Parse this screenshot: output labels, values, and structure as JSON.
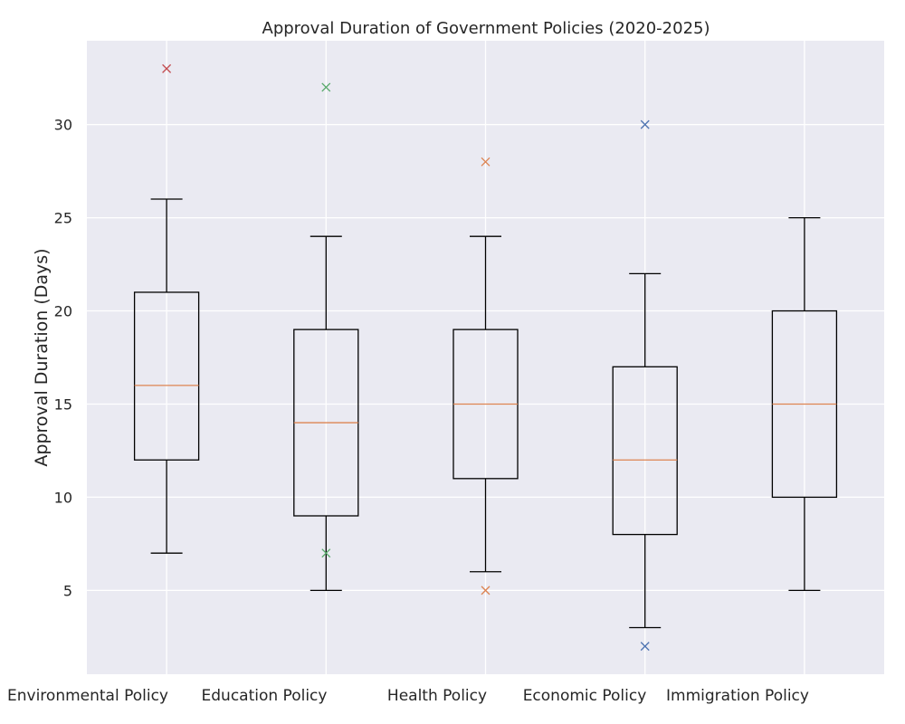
{
  "chart_data": {
    "type": "box",
    "title": "Approval Duration of Government Policies (2020-2025)",
    "xlabel": "",
    "ylabel": "Approval Duration (Days)",
    "ylim": [
      0.5,
      34.5
    ],
    "yticks": [
      5,
      10,
      15,
      20,
      25,
      30
    ],
    "grid": true,
    "categories": [
      "Environmental Policy",
      "Education Policy",
      "Health Policy",
      "Economic Policy",
      "Immigration Policy"
    ],
    "boxes": [
      {
        "category": "Environmental Policy",
        "whisker_low": 7,
        "q1": 12,
        "median": 16,
        "q3": 21,
        "whisker_high": 26,
        "outliers": [
          33
        ],
        "color": "#c44e52"
      },
      {
        "category": "Education Policy",
        "whisker_low": 5,
        "q1": 9,
        "median": 14,
        "q3": 19,
        "whisker_high": 24,
        "outliers": [
          32,
          7
        ],
        "color": "#55a868"
      },
      {
        "category": "Health Policy",
        "whisker_low": 6,
        "q1": 11,
        "median": 15,
        "q3": 19,
        "whisker_high": 24,
        "outliers": [
          28,
          5
        ],
        "color": "#dd8452"
      },
      {
        "category": "Economic Policy",
        "whisker_low": 3,
        "q1": 8,
        "median": 12,
        "q3": 17,
        "whisker_high": 22,
        "outliers": [
          30,
          2
        ],
        "color": "#4c72b0"
      },
      {
        "category": "Immigration Policy",
        "whisker_low": 5,
        "q1": 10,
        "median": 15,
        "q3": 20,
        "whisker_high": 25,
        "outliers": [],
        "color": "#dd8452"
      }
    ],
    "colors": {
      "background": "#eaeaf2",
      "grid": "#ffffff",
      "box": "#000000",
      "median": "#dd8452"
    }
  }
}
